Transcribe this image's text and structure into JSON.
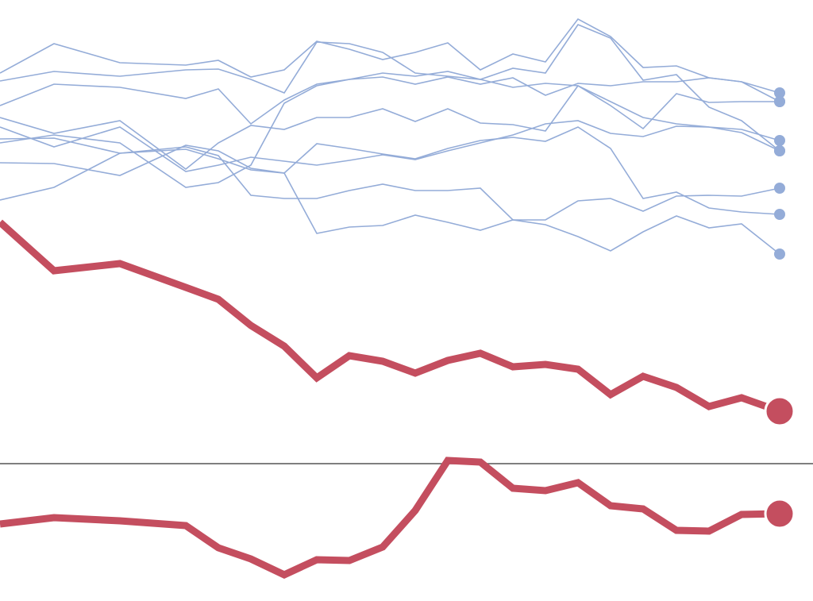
{
  "chart_data": [
    {
      "type": "line",
      "x": [
        0,
        68,
        151,
        234,
        275,
        316,
        358,
        399,
        440,
        482,
        523,
        564,
        605,
        646,
        687,
        728,
        769,
        810,
        852,
        893,
        934,
        982
      ],
      "xlim": [
        0,
        1024
      ],
      "ylim": [
        0,
        584
      ],
      "end_marker": true,
      "series": [
        {
          "color": "#94acd8",
          "values": [
            492,
            529,
            505,
            502,
            508,
            487,
            496,
            532,
            522,
            509,
            518,
            530,
            496,
            516,
            506,
            560,
            538,
            499,
            501,
            486,
            481,
            456
          ]
        },
        {
          "color": "#94acd8",
          "values": [
            482,
            494,
            488,
            496,
            497,
            484,
            467,
            531,
            529,
            518,
            492,
            488,
            484,
            498,
            492,
            553,
            536,
            483,
            490,
            449,
            432,
            394
          ]
        },
        {
          "color": "#94acd8",
          "values": [
            451,
            478,
            474,
            460,
            472,
            428,
            458,
            478,
            484,
            487,
            478,
            487,
            478,
            486,
            464,
            479,
            476,
            481,
            481,
            486,
            481,
            467
          ]
        },
        {
          "color": "#94acd8",
          "values": [
            436,
            416,
            432,
            371,
            404,
            426,
            421,
            436,
            436,
            447,
            431,
            447,
            429,
            427,
            419,
            476,
            451,
            422,
            466,
            455,
            456,
            456
          ]
        },
        {
          "color": "#94acd8",
          "values": [
            424,
            399,
            424,
            368,
            376,
            386,
            381,
            376,
            382,
            389,
            383,
            394,
            404,
            414,
            428,
            432,
            416,
            412,
            425,
            424,
            417,
            394
          ]
        },
        {
          "color": "#94acd8",
          "values": [
            409,
            410,
            391,
            396,
            384,
            370,
            366,
            403,
            397,
            390,
            384,
            397,
            407,
            411,
            406,
            424,
            397,
            334,
            342,
            322,
            317,
            314
          ]
        },
        {
          "color": "#94acd8",
          "values": [
            379,
            378,
            363,
            401,
            394,
            372,
            366,
            290,
            298,
            300,
            313,
            304,
            294,
            307,
            301,
            286,
            268,
            292,
            312,
            297,
            302,
            264
          ]
        },
        {
          "color": "#94acd8",
          "values": [
            332,
            348,
            391,
            399,
            388,
            338,
            334,
            334,
            344,
            352,
            344,
            344,
            347,
            307,
            307,
            331,
            334,
            318,
            337,
            338,
            337,
            347
          ]
        },
        {
          "color": "#94acd8",
          "values": [
            404,
            414,
            404,
            348,
            354,
            376,
            454,
            476,
            484,
            492,
            488,
            494,
            484,
            474,
            479,
            476,
            456,
            436,
            428,
            424,
            421,
            407
          ]
        },
        {
          "color": "#c44e5f",
          "emphasized": true,
          "values": [
            304,
            243,
            252,
            222,
            207,
            174,
            148,
            108,
            136,
            129,
            114,
            130,
            139,
            122,
            125,
            119,
            87,
            110,
            96,
            72,
            83,
            66
          ]
        }
      ]
    },
    {
      "type": "line",
      "x": [
        0,
        68,
        151,
        234,
        275,
        316,
        358,
        399,
        440,
        482,
        523,
        564,
        605,
        646,
        687,
        728,
        769,
        810,
        852,
        893,
        934,
        982
      ],
      "xlim": [
        0,
        1024
      ],
      "ylim": [
        0,
        180
      ],
      "end_marker": true,
      "reference_line": 173,
      "series": [
        {
          "color": "#c44e5f",
          "emphasized": true,
          "values": [
            97,
            105,
            101,
            95,
            67,
            53,
            33,
            52,
            51,
            68,
            114,
            177,
            175,
            142,
            139,
            149,
            120,
            116,
            89,
            88,
            109,
            110
          ]
        }
      ]
    }
  ]
}
